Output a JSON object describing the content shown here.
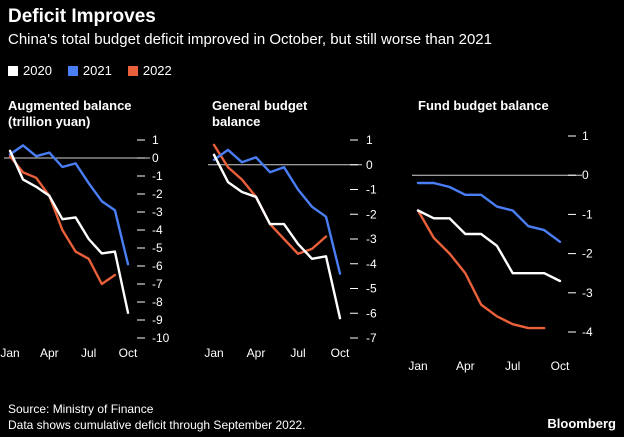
{
  "title": "Deficit Improves",
  "subtitle": "China's total budget deficit improved in October, but still worse than 2021",
  "legend": [
    {
      "label": "2020",
      "color": "#ffffff"
    },
    {
      "label": "2021",
      "color": "#4a7ef5"
    },
    {
      "label": "2022",
      "color": "#e9603a"
    }
  ],
  "source": "Source: Ministry of Finance",
  "note": "Data shows cumulative deficit through September 2022.",
  "brand": "Bloomberg",
  "chart_data": [
    {
      "type": "line",
      "title": "Augmented balance (trillion yuan)",
      "title_lines": [
        "Augmented balance",
        "(trillion yuan)"
      ],
      "x": [
        1,
        2,
        3,
        4,
        5,
        6,
        7,
        8,
        9,
        10
      ],
      "xticks": [
        {
          "month": 1,
          "label": "Jan"
        },
        {
          "month": 4,
          "label": "Apr"
        },
        {
          "month": 7,
          "label": "Jul"
        },
        {
          "month": 10,
          "label": "Oct"
        }
      ],
      "ylim": [
        -10,
        1
      ],
      "yticks": [
        1,
        0,
        -1,
        -2,
        -3,
        -4,
        -5,
        -6,
        -7,
        -8,
        -9,
        -10
      ],
      "ytick_labels": [
        "1",
        "0",
        "-1",
        "-2",
        "-3",
        "-4",
        "-5",
        "-6",
        "-7",
        "-8",
        "-9",
        "-10"
      ],
      "series": [
        {
          "name": "2020",
          "x": [
            1,
            2,
            3,
            4,
            5,
            6,
            7,
            8,
            9,
            10
          ],
          "values": [
            0.4,
            -1.2,
            -1.6,
            -2.1,
            -3.4,
            -3.3,
            -4.5,
            -5.3,
            -5.2,
            -8.6
          ]
        },
        {
          "name": "2021",
          "x": [
            1,
            2,
            3,
            4,
            5,
            6,
            7,
            8,
            9,
            10
          ],
          "values": [
            0.2,
            0.7,
            0.1,
            0.3,
            -0.5,
            -0.3,
            -1.4,
            -2.4,
            -2.9,
            -5.9
          ]
        },
        {
          "name": "2022",
          "x": [
            1,
            2,
            3,
            4,
            5,
            6,
            7,
            8,
            9
          ],
          "values": [
            0.1,
            -0.8,
            -1.1,
            -2.1,
            -4.0,
            -5.2,
            -5.6,
            -7.0,
            -6.5
          ]
        }
      ]
    },
    {
      "type": "line",
      "title": "General budget balance",
      "title_lines": [
        "General budget",
        "balance"
      ],
      "x": [
        1,
        2,
        3,
        4,
        5,
        6,
        7,
        8,
        9,
        10
      ],
      "xticks": [
        {
          "month": 1,
          "label": "Jan"
        },
        {
          "month": 4,
          "label": "Apr"
        },
        {
          "month": 7,
          "label": "Jul"
        },
        {
          "month": 10,
          "label": "Oct"
        }
      ],
      "ylim": [
        -7,
        1
      ],
      "yticks": [
        1,
        0,
        -1,
        -2,
        -3,
        -4,
        -5,
        -6,
        -7
      ],
      "ytick_labels": [
        "1",
        "0",
        "-1",
        "-2",
        "-3",
        "-4",
        "-5",
        "-6",
        "-7"
      ],
      "series": [
        {
          "name": "2020",
          "x": [
            1,
            2,
            3,
            4,
            5,
            6,
            7,
            8,
            9,
            10
          ],
          "values": [
            0.4,
            -0.7,
            -1.1,
            -1.3,
            -2.4,
            -2.4,
            -3.2,
            -3.8,
            -3.7,
            -6.2
          ]
        },
        {
          "name": "2021",
          "x": [
            1,
            2,
            3,
            4,
            5,
            6,
            7,
            8,
            9,
            10
          ],
          "values": [
            0.2,
            0.6,
            0.1,
            0.3,
            -0.3,
            -0.1,
            -1.0,
            -1.7,
            -2.1,
            -4.4
          ]
        },
        {
          "name": "2022",
          "x": [
            1,
            2,
            3,
            4,
            5,
            6,
            7,
            8,
            9
          ],
          "values": [
            0.8,
            -0.1,
            -0.6,
            -1.3,
            -2.4,
            -3.0,
            -3.6,
            -3.4,
            -2.9
          ]
        }
      ]
    },
    {
      "type": "line",
      "title": "Fund budget balance",
      "title_lines": [
        "Fund budget balance"
      ],
      "x": [
        1,
        2,
        3,
        4,
        5,
        6,
        7,
        8,
        9,
        10
      ],
      "xticks": [
        {
          "month": 1,
          "label": "Jan"
        },
        {
          "month": 4,
          "label": "Apr"
        },
        {
          "month": 7,
          "label": "Jul"
        },
        {
          "month": 10,
          "label": "Oct"
        }
      ],
      "ylim": [
        -4,
        1
      ],
      "yticks": [
        1,
        0,
        -1,
        -2,
        -3,
        -4
      ],
      "ytick_labels": [
        "1",
        "0",
        "-1",
        "-2",
        "-3",
        "-4"
      ],
      "series": [
        {
          "name": "2020",
          "x": [
            1,
            2,
            3,
            4,
            5,
            6,
            7,
            8,
            9,
            10
          ],
          "values": [
            -0.9,
            -1.1,
            -1.1,
            -1.5,
            -1.5,
            -1.8,
            -2.5,
            -2.5,
            -2.5,
            -2.7
          ]
        },
        {
          "name": "2021",
          "x": [
            1,
            2,
            3,
            4,
            5,
            6,
            7,
            8,
            9,
            10
          ],
          "values": [
            -0.2,
            -0.2,
            -0.3,
            -0.5,
            -0.5,
            -0.8,
            -0.9,
            -1.3,
            -1.4,
            -1.7
          ]
        },
        {
          "name": "2022",
          "x": [
            1,
            2,
            3,
            4,
            5,
            6,
            7,
            8,
            9
          ],
          "values": [
            -0.9,
            -1.6,
            -2.0,
            -2.5,
            -3.3,
            -3.6,
            -3.8,
            -3.9,
            -3.9
          ]
        }
      ]
    }
  ]
}
